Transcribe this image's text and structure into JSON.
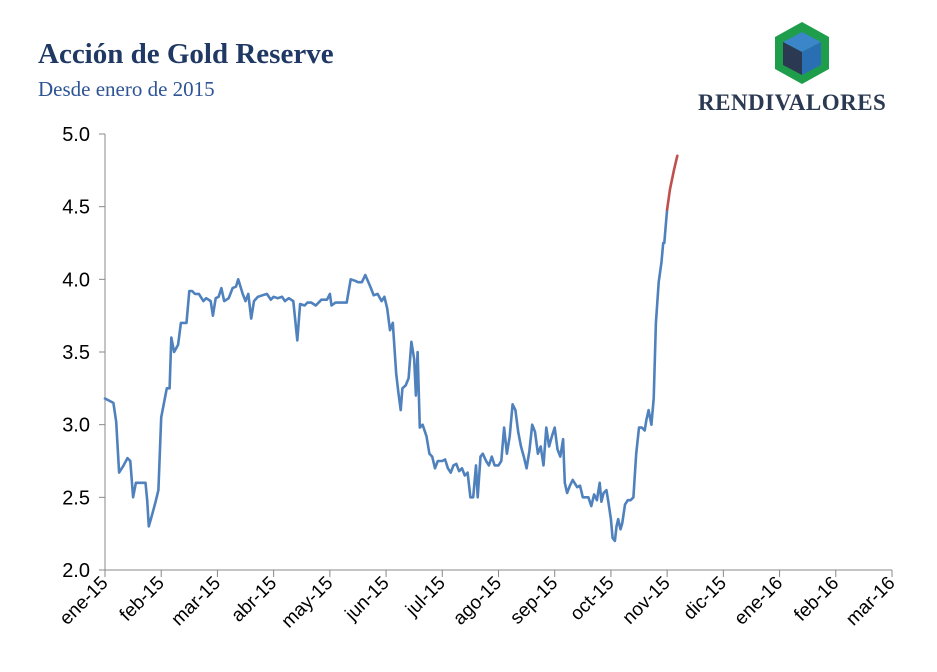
{
  "header": {
    "title": "Acción de Gold Reserve",
    "subtitle": "Desde enero de 2015"
  },
  "logo": {
    "text": "RENDIVALORES",
    "icon": "green-hexagon-cube-icon",
    "colors": {
      "green": "#1e9e4a",
      "blue": "#3a86c8",
      "dark": "#2b3a52"
    }
  },
  "chart_data": {
    "type": "line",
    "title": "Acción de Gold Reserve",
    "subtitle": "Desde enero de 2015",
    "xlabel": "",
    "ylabel": "",
    "ylim": [
      2.0,
      5.0
    ],
    "yticks": [
      "2.0",
      "2.5",
      "3.0",
      "3.5",
      "4.0",
      "4.5",
      "5.0"
    ],
    "xticks": [
      "ene-15",
      "feb-15",
      "mar-15",
      "abr-15",
      "may-15",
      "jun-15",
      "jul-15",
      "ago-15",
      "sep-15",
      "oct-15",
      "nov-15",
      "dic-15",
      "ene-16",
      "feb-16",
      "mar-16"
    ],
    "grid": false,
    "legend": "none",
    "series": [
      {
        "color": "#4f81bd",
        "points": [
          [
            0.0,
            3.18
          ],
          [
            0.15,
            3.15
          ],
          [
            0.2,
            3.02
          ],
          [
            0.25,
            2.67
          ],
          [
            0.33,
            2.72
          ],
          [
            0.4,
            2.77
          ],
          [
            0.45,
            2.75
          ],
          [
            0.5,
            2.5
          ],
          [
            0.55,
            2.6
          ],
          [
            0.6,
            2.6
          ],
          [
            0.72,
            2.6
          ],
          [
            0.75,
            2.48
          ],
          [
            0.78,
            2.3
          ],
          [
            0.83,
            2.37
          ],
          [
            0.9,
            2.47
          ],
          [
            0.95,
            2.55
          ],
          [
            1.0,
            3.05
          ],
          [
            1.05,
            3.15
          ],
          [
            1.1,
            3.25
          ],
          [
            1.15,
            3.25
          ],
          [
            1.18,
            3.6
          ],
          [
            1.23,
            3.5
          ],
          [
            1.3,
            3.55
          ],
          [
            1.35,
            3.7
          ],
          [
            1.45,
            3.7
          ],
          [
            1.5,
            3.92
          ],
          [
            1.55,
            3.92
          ],
          [
            1.6,
            3.9
          ],
          [
            1.67,
            3.9
          ],
          [
            1.75,
            3.85
          ],
          [
            1.8,
            3.87
          ],
          [
            1.88,
            3.85
          ],
          [
            1.92,
            3.75
          ],
          [
            1.97,
            3.87
          ],
          [
            2.02,
            3.88
          ],
          [
            2.07,
            3.94
          ],
          [
            2.12,
            3.85
          ],
          [
            2.2,
            3.87
          ],
          [
            2.27,
            3.94
          ],
          [
            2.33,
            3.95
          ],
          [
            2.37,
            4.0
          ],
          [
            2.45,
            3.9
          ],
          [
            2.5,
            3.85
          ],
          [
            2.55,
            3.9
          ],
          [
            2.6,
            3.73
          ],
          [
            2.65,
            3.85
          ],
          [
            2.72,
            3.88
          ],
          [
            2.8,
            3.89
          ],
          [
            2.88,
            3.9
          ],
          [
            2.95,
            3.86
          ],
          [
            3.0,
            3.88
          ],
          [
            3.07,
            3.87
          ],
          [
            3.15,
            3.88
          ],
          [
            3.2,
            3.85
          ],
          [
            3.27,
            3.87
          ],
          [
            3.35,
            3.85
          ],
          [
            3.42,
            3.58
          ],
          [
            3.47,
            3.83
          ],
          [
            3.55,
            3.82
          ],
          [
            3.6,
            3.84
          ],
          [
            3.67,
            3.84
          ],
          [
            3.75,
            3.82
          ],
          [
            3.85,
            3.86
          ],
          [
            3.95,
            3.86
          ],
          [
            4.0,
            3.9
          ],
          [
            4.03,
            3.82
          ],
          [
            4.1,
            3.84
          ],
          [
            4.2,
            3.84
          ],
          [
            4.3,
            3.84
          ],
          [
            4.37,
            4.0
          ],
          [
            4.45,
            3.99
          ],
          [
            4.5,
            3.98
          ],
          [
            4.57,
            3.98
          ],
          [
            4.63,
            4.03
          ],
          [
            4.72,
            3.95
          ],
          [
            4.78,
            3.89
          ],
          [
            4.85,
            3.9
          ],
          [
            4.92,
            3.85
          ],
          [
            4.97,
            3.88
          ],
          [
            5.02,
            3.8
          ],
          [
            5.07,
            3.65
          ],
          [
            5.12,
            3.7
          ],
          [
            5.18,
            3.35
          ],
          [
            5.22,
            3.22
          ],
          [
            5.26,
            3.1
          ],
          [
            5.29,
            3.25
          ],
          [
            5.35,
            3.27
          ],
          [
            5.4,
            3.32
          ],
          [
            5.45,
            3.57
          ],
          [
            5.5,
            3.45
          ],
          [
            5.53,
            3.2
          ],
          [
            5.56,
            3.5
          ],
          [
            5.6,
            2.98
          ],
          [
            5.65,
            3.0
          ],
          [
            5.72,
            2.92
          ],
          [
            5.77,
            2.8
          ],
          [
            5.82,
            2.78
          ],
          [
            5.87,
            2.7
          ],
          [
            5.92,
            2.75
          ],
          [
            6.0,
            2.75
          ],
          [
            6.05,
            2.76
          ],
          [
            6.1,
            2.7
          ],
          [
            6.15,
            2.67
          ],
          [
            6.2,
            2.72
          ],
          [
            6.25,
            2.73
          ],
          [
            6.3,
            2.68
          ],
          [
            6.35,
            2.7
          ],
          [
            6.4,
            2.65
          ],
          [
            6.45,
            2.67
          ],
          [
            6.5,
            2.5
          ],
          [
            6.55,
            2.5
          ],
          [
            6.6,
            2.72
          ],
          [
            6.63,
            2.5
          ],
          [
            6.68,
            2.78
          ],
          [
            6.72,
            2.8
          ],
          [
            6.78,
            2.75
          ],
          [
            6.83,
            2.72
          ],
          [
            6.88,
            2.78
          ],
          [
            6.93,
            2.72
          ],
          [
            7.0,
            2.72
          ],
          [
            7.05,
            2.75
          ],
          [
            7.1,
            2.98
          ],
          [
            7.15,
            2.8
          ],
          [
            7.2,
            2.92
          ],
          [
            7.25,
            3.14
          ],
          [
            7.3,
            3.1
          ],
          [
            7.35,
            2.95
          ],
          [
            7.4,
            2.85
          ],
          [
            7.45,
            2.78
          ],
          [
            7.5,
            2.7
          ],
          [
            7.55,
            2.82
          ],
          [
            7.6,
            3.0
          ],
          [
            7.65,
            2.95
          ],
          [
            7.7,
            2.8
          ],
          [
            7.75,
            2.85
          ],
          [
            7.8,
            2.72
          ],
          [
            7.85,
            2.98
          ],
          [
            7.9,
            2.85
          ],
          [
            7.95,
            2.92
          ],
          [
            8.0,
            2.98
          ],
          [
            8.05,
            2.83
          ],
          [
            8.1,
            2.78
          ],
          [
            8.15,
            2.9
          ],
          [
            8.18,
            2.6
          ],
          [
            8.22,
            2.53
          ],
          [
            8.27,
            2.58
          ],
          [
            8.32,
            2.62
          ],
          [
            8.4,
            2.57
          ],
          [
            8.45,
            2.58
          ],
          [
            8.5,
            2.5
          ],
          [
            8.55,
            2.5
          ],
          [
            8.6,
            2.5
          ],
          [
            8.65,
            2.44
          ],
          [
            8.7,
            2.52
          ],
          [
            8.75,
            2.48
          ],
          [
            8.8,
            2.6
          ],
          [
            8.83,
            2.47
          ],
          [
            8.87,
            2.53
          ],
          [
            8.92,
            2.55
          ],
          [
            8.95,
            2.48
          ],
          [
            9.0,
            2.35
          ],
          [
            9.03,
            2.22
          ],
          [
            9.07,
            2.2
          ],
          [
            9.1,
            2.3
          ],
          [
            9.13,
            2.35
          ],
          [
            9.17,
            2.28
          ],
          [
            9.2,
            2.32
          ],
          [
            9.25,
            2.45
          ],
          [
            9.3,
            2.48
          ],
          [
            9.35,
            2.48
          ],
          [
            9.4,
            2.5
          ],
          [
            9.45,
            2.8
          ],
          [
            9.5,
            2.98
          ],
          [
            9.55,
            2.98
          ],
          [
            9.6,
            2.96
          ],
          [
            9.63,
            3.03
          ],
          [
            9.67,
            3.1
          ],
          [
            9.72,
            3.0
          ],
          [
            9.76,
            3.18
          ],
          [
            9.8,
            3.7
          ],
          [
            9.85,
            3.98
          ],
          [
            9.9,
            4.12
          ],
          [
            9.93,
            4.25
          ],
          [
            9.95,
            4.25
          ],
          [
            9.97,
            4.35
          ],
          [
            10.0,
            4.48
          ]
        ]
      },
      {
        "color": "#c0504d",
        "points": [
          [
            10.0,
            4.48
          ],
          [
            10.05,
            4.62
          ],
          [
            10.12,
            4.75
          ],
          [
            10.18,
            4.85
          ]
        ]
      }
    ]
  }
}
